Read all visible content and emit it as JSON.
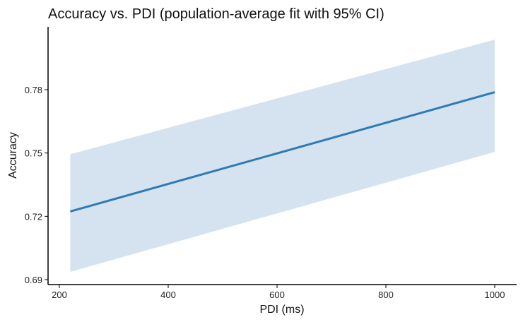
{
  "chart_data": {
    "type": "line",
    "title": "Accuracy vs. PDI (population-average fit with 95% CI)",
    "xlabel": "PDI (ms)",
    "ylabel": "Accuracy",
    "xlim": [
      200,
      1000
    ],
    "ylim": [
      0.69,
      0.8
    ],
    "x_ticks": [
      200,
      400,
      600,
      800,
      1000
    ],
    "y_ticks": [
      "0.69",
      "0.72",
      "0.75",
      "0.78"
    ],
    "grid": false,
    "series": [
      {
        "x": [
          220,
          1000
        ],
        "y": [
          0.7223,
          0.7788
        ],
        "ci_lower": [
          0.6937,
          0.7505
        ],
        "ci_upper": [
          0.7494,
          0.8037
        ]
      }
    ],
    "colors": {
      "line": "#2c7bb6",
      "band": "#d4e3ef",
      "axis": "#000000"
    }
  }
}
